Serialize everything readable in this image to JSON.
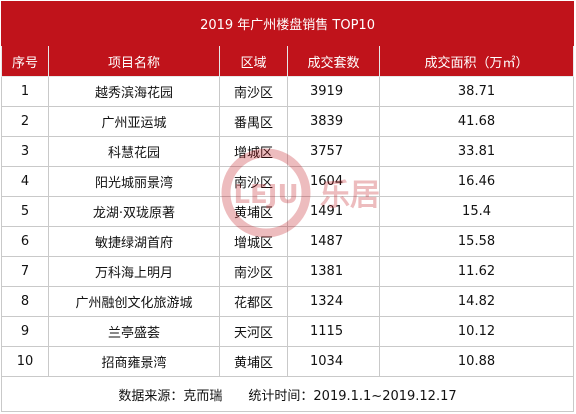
{
  "table": {
    "title": "2019 年广州楼盘销售 TOP10",
    "headers": [
      "序号",
      "项目名称",
      "区域",
      "成交套数",
      "成交面积（万㎡）"
    ],
    "rows": [
      [
        "1",
        "越秀滨海花园",
        "南沙区",
        "3919",
        "38.71"
      ],
      [
        "2",
        "广州亚运城",
        "番禺区",
        "3839",
        "41.68"
      ],
      [
        "3",
        "科慧花园",
        "增城区",
        "3757",
        "33.81"
      ],
      [
        "4",
        "阳光城丽景湾",
        "南沙区",
        "1604",
        "16.46"
      ],
      [
        "5",
        "龙湖·双珑原著",
        "黄埔区",
        "1491",
        "15.4"
      ],
      [
        "6",
        "敏捷绿湖首府",
        "增城区",
        "1487",
        "15.58"
      ],
      [
        "7",
        "万科海上明月",
        "南沙区",
        "1381",
        "11.62"
      ],
      [
        "8",
        "广州融创文化旅游城",
        "花都区",
        "1324",
        "14.82"
      ],
      [
        "9",
        "兰亭盛荟",
        "天河区",
        "1115",
        "10.12"
      ],
      [
        "10",
        "招商雍景湾",
        "黄埔区",
        "1034",
        "10.88"
      ]
    ],
    "footer": "数据来源：克而瑞　　统计时间：2019.1.1~2019.12.17"
  },
  "watermark": {
    "logo_text": "LEJU",
    "brand_text": "乐居",
    "color": "#c0131b"
  }
}
